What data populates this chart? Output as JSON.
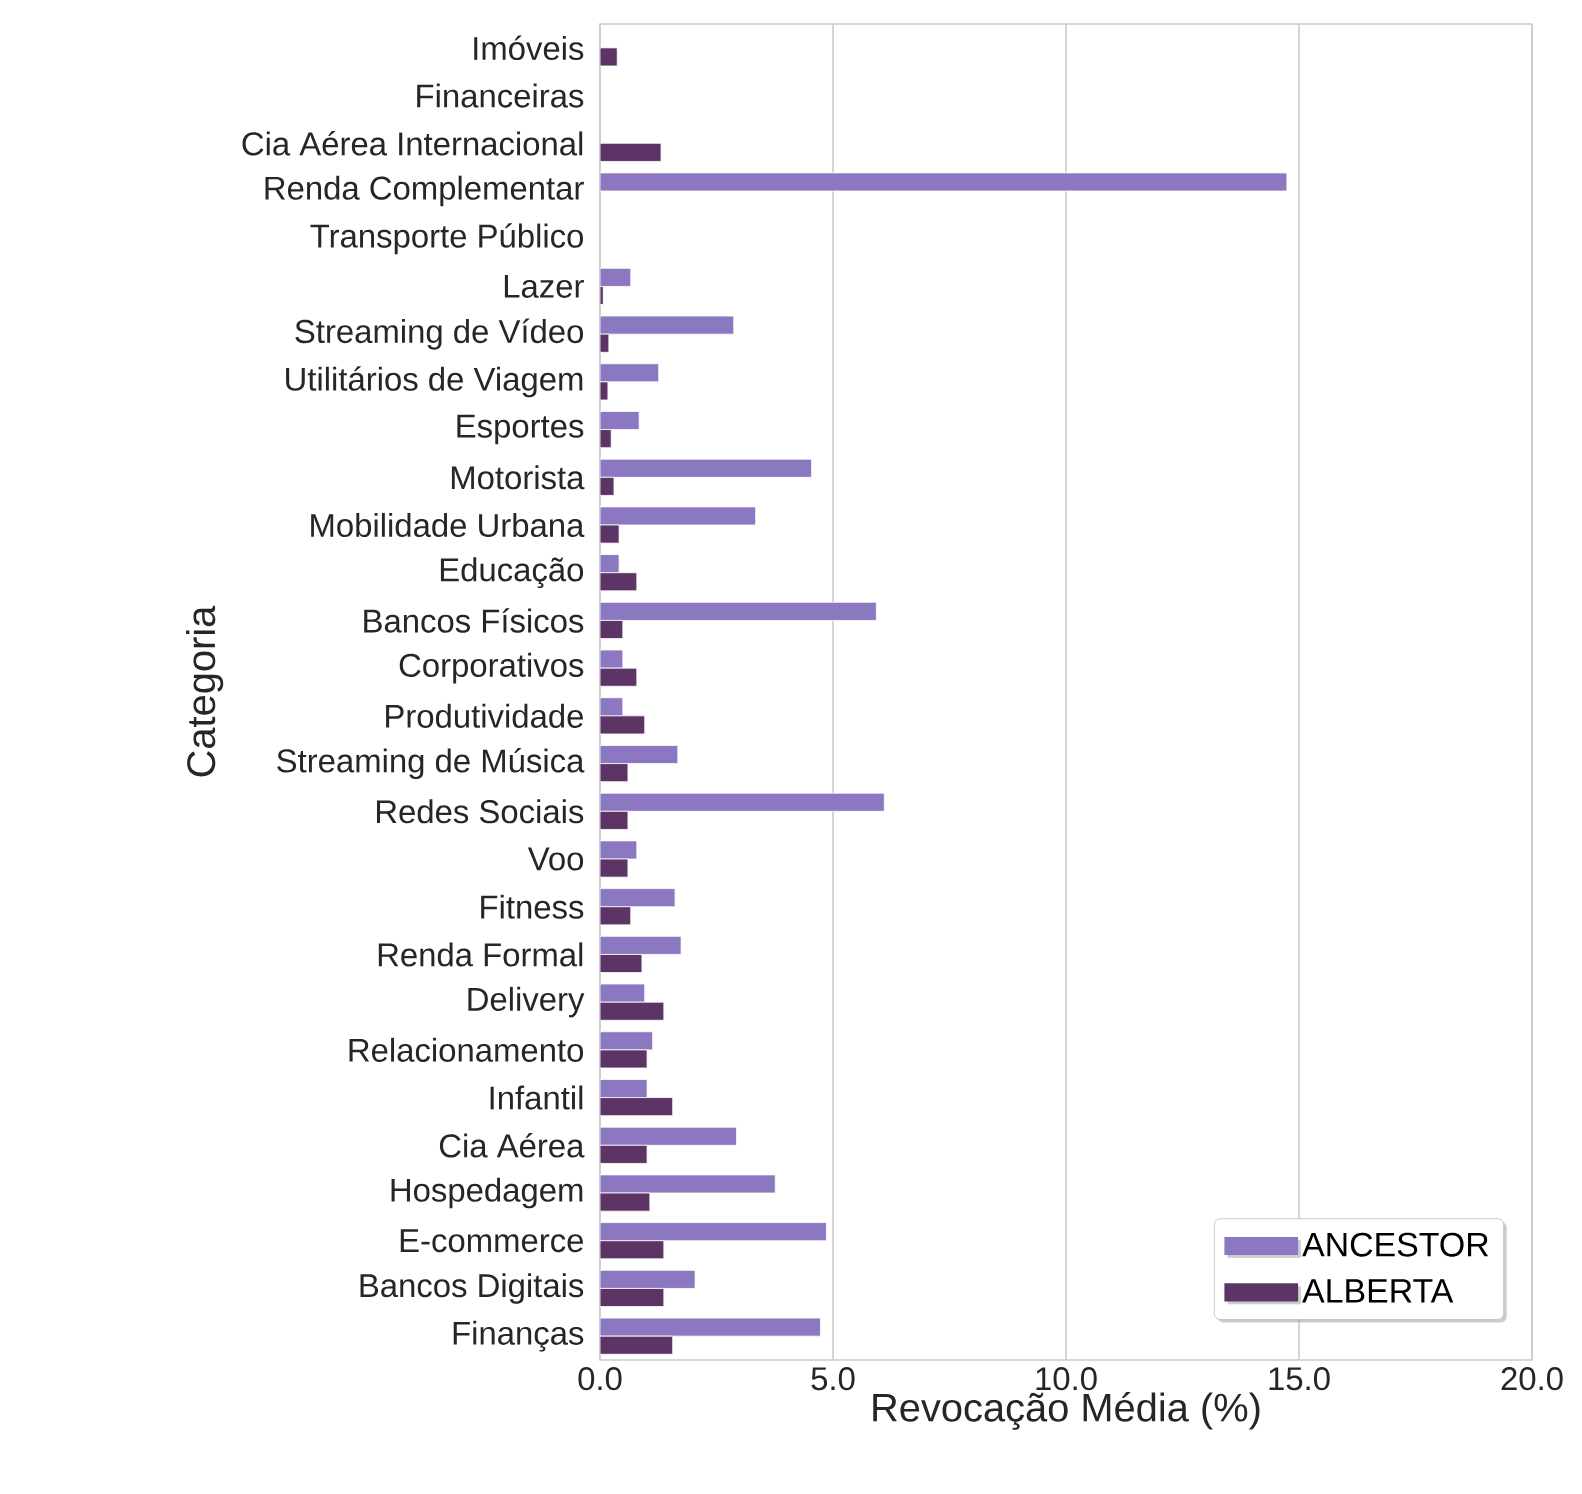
{
  "chart_data": {
    "type": "bar",
    "orientation": "horizontal",
    "xlabel": "Revocação Média (%)",
    "ylabel": "Categoria",
    "categories": [
      "Imóveis",
      "Financeiras",
      "Cia Aérea Internacional",
      "Renda Complementar",
      "Transporte Público",
      "Lazer",
      "Streaming de Vídeo",
      "Utilitários de Viagem",
      "Esportes",
      "Motorista",
      "Mobilidade Urbana",
      "Educação",
      "Bancos Físicos",
      "Corporativos",
      "Produtividade",
      "Streaming de Música",
      "Redes Sociais",
      "Voo",
      "Fitness",
      "Renda Formal",
      "Delivery",
      "Relacionamento",
      "Infantil",
      "Cia Aérea",
      "Hospedagem",
      "E-commerce",
      "Bancos Digitais",
      "Finanças"
    ],
    "series": [
      {
        "name": "ANCESTOR",
        "color": "#8c78c0",
        "values": [
          null,
          null,
          null,
          14.74,
          null,
          0.66,
          2.87,
          1.26,
          0.84,
          4.54,
          3.34,
          0.41,
          5.93,
          0.49,
          0.49,
          1.67,
          6.1,
          0.79,
          1.61,
          1.74,
          0.96,
          1.13,
          1.01,
          2.93,
          3.76,
          4.86,
          2.04,
          4.73
        ]
      },
      {
        "name": "ALBERTA",
        "color": "#5c3566",
        "values": [
          0.37,
          null,
          1.31,
          null,
          null,
          0.07,
          0.19,
          0.17,
          0.24,
          0.3,
          0.41,
          0.79,
          0.49,
          0.79,
          0.96,
          0.6,
          0.6,
          0.6,
          0.66,
          0.9,
          1.37,
          1.01,
          1.56,
          1.01,
          1.07,
          1.37,
          1.37,
          1.56
        ]
      }
    ],
    "xlim": [
      0,
      20
    ],
    "xticks": [
      {
        "value": 0,
        "label": "0.0"
      },
      {
        "value": 5,
        "label": "5.0"
      },
      {
        "value": 10,
        "label": "10.0"
      },
      {
        "value": 15,
        "label": "15.0"
      },
      {
        "value": 20,
        "label": "20.0"
      }
    ],
    "grid": "x",
    "legend": "bottom right"
  }
}
